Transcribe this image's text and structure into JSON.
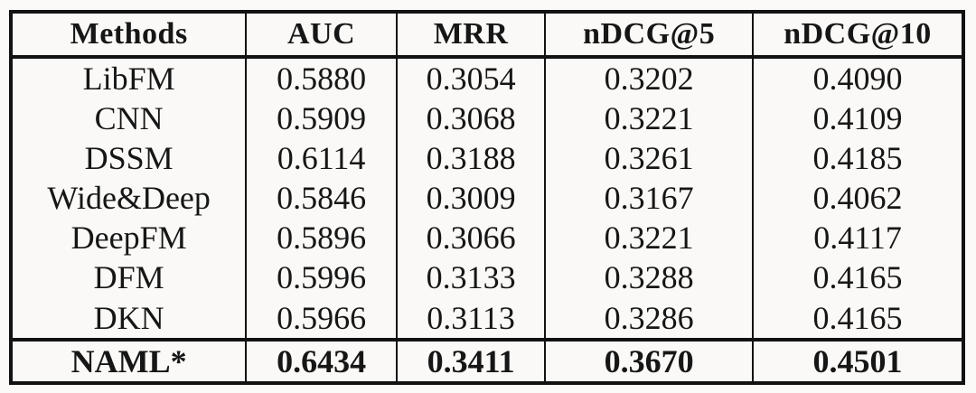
{
  "table": {
    "columns": [
      "Methods",
      "AUC",
      "MRR",
      "nDCG@5",
      "nDCG@10"
    ],
    "rows": [
      {
        "method": "LibFM",
        "values": [
          "0.5880",
          "0.3054",
          "0.3202",
          "0.4090"
        ],
        "bold": false
      },
      {
        "method": "CNN",
        "values": [
          "0.5909",
          "0.3068",
          "0.3221",
          "0.4109"
        ],
        "bold": false
      },
      {
        "method": "DSSM",
        "values": [
          "0.6114",
          "0.3188",
          "0.3261",
          "0.4185"
        ],
        "bold": false
      },
      {
        "method": "Wide&Deep",
        "values": [
          "0.5846",
          "0.3009",
          "0.3167",
          "0.4062"
        ],
        "bold": false
      },
      {
        "method": "DeepFM",
        "values": [
          "0.5896",
          "0.3066",
          "0.3221",
          "0.4117"
        ],
        "bold": false
      },
      {
        "method": "DFM",
        "values": [
          "0.5996",
          "0.3133",
          "0.3288",
          "0.4165"
        ],
        "bold": false
      },
      {
        "method": "DKN",
        "values": [
          "0.5966",
          "0.3113",
          "0.3286",
          "0.4165"
        ],
        "bold": false
      },
      {
        "method": "NAML*",
        "values": [
          "0.6434",
          "0.3411",
          "0.3670",
          "0.4501"
        ],
        "bold": true
      }
    ]
  },
  "colors": {
    "border": "#121212",
    "background": "#faf9f7",
    "text": "#161616"
  }
}
